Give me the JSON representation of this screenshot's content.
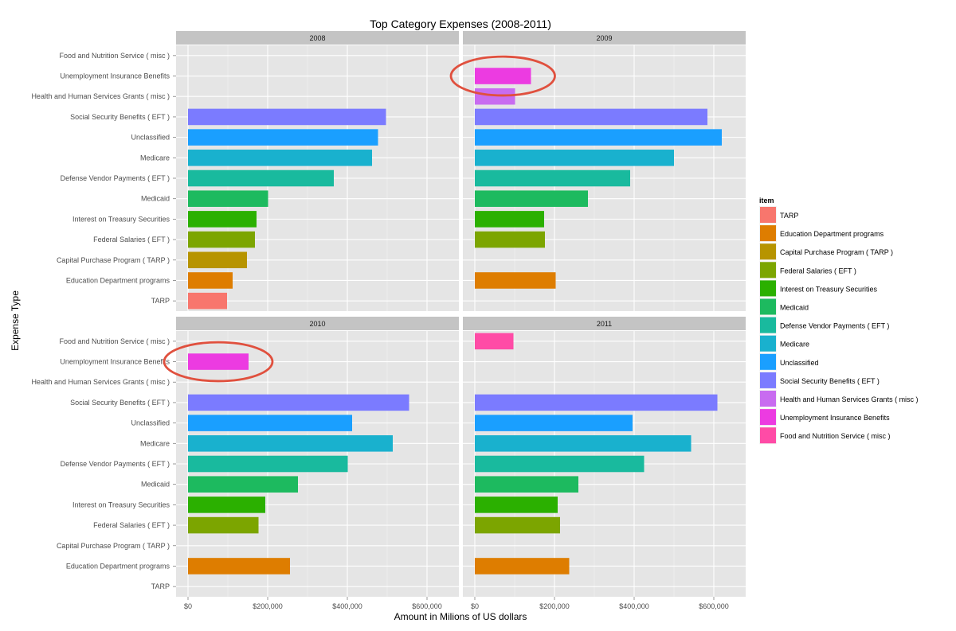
{
  "chart_data": {
    "type": "bar",
    "orientation": "horizontal",
    "title": "Top Category Expenses (2008-2011)",
    "xlabel": "Amount in Milions of US dollars",
    "ylabel": "Expense Type",
    "xlim": [
      0,
      650000
    ],
    "x_ticks": [
      {
        "value": 0,
        "label": "$0"
      },
      {
        "value": 200000,
        "label": "$200,000"
      },
      {
        "value": 400000,
        "label": "$400,000"
      },
      {
        "value": 600000,
        "label": "$600,000"
      }
    ],
    "categories": [
      "Food and Nutrition Service ( misc )",
      "Unemployment Insurance Benefits",
      "Health and Human Services Grants ( misc )",
      "Social Security Benefits ( EFT )",
      "Unclassified",
      "Medicare",
      "Defense Vendor Payments ( EFT )",
      "Medicaid",
      "Interest on Treasury Securities",
      "Federal Salaries ( EFT )",
      "Capital Purchase Program ( TARP )",
      "Education Department programs",
      "TARP"
    ],
    "grid": true,
    "legend_position": "right",
    "legend_title": "item",
    "legend_items": [
      {
        "label": "TARP",
        "color": "#F8766D"
      },
      {
        "label": "Education Department programs",
        "color": "#DE7D00"
      },
      {
        "label": "Capital Purchase Program ( TARP )",
        "color": "#B79400"
      },
      {
        "label": "Federal Salaries ( EFT )",
        "color": "#7CA500"
      },
      {
        "label": "Interest on Treasury Securities",
        "color": "#2BB000"
      },
      {
        "label": "Medicaid",
        "color": "#1DBA5F"
      },
      {
        "label": "Defense Vendor Payments ( EFT )",
        "color": "#19BA9E"
      },
      {
        "label": "Medicare",
        "color": "#19B1CE"
      },
      {
        "label": "Unclassified",
        "color": "#1A9FFF"
      },
      {
        "label": "Social Security Benefits ( EFT )",
        "color": "#7B7BFF"
      },
      {
        "label": "Health and Human Services Grants ( misc )",
        "color": "#C86CF0"
      },
      {
        "label": "Unemployment Insurance Benefits",
        "color": "#EC3BE1"
      },
      {
        "label": "Food and Nutrition Service ( misc )",
        "color": "#FF4BA6"
      }
    ],
    "panels": [
      {
        "label": "2008",
        "values": {
          "TARP": 98000,
          "Education Department programs": 112000,
          "Capital Purchase Program ( TARP )": 148000,
          "Federal Salaries ( EFT )": 168000,
          "Interest on Treasury Securities": 172000,
          "Medicaid": 201000,
          "Defense Vendor Payments ( EFT )": 366000,
          "Medicare": 462000,
          "Unclassified": 477000,
          "Social Security Benefits ( EFT )": 497000
        }
      },
      {
        "label": "2009",
        "values": {
          "Education Department programs": 203000,
          "Federal Salaries ( EFT )": 176000,
          "Interest on Treasury Securities": 174000,
          "Medicaid": 284000,
          "Defense Vendor Payments ( EFT )": 390000,
          "Medicare": 500000,
          "Unclassified": 620000,
          "Social Security Benefits ( EFT )": 584000,
          "Health and Human Services Grants ( misc )": 101000,
          "Unemployment Insurance Benefits": 141000
        }
      },
      {
        "label": "2010",
        "values": {
          "Education Department programs": 256000,
          "Federal Salaries ( EFT )": 177000,
          "Interest on Treasury Securities": 194000,
          "Medicaid": 276000,
          "Defense Vendor Payments ( EFT )": 401000,
          "Medicare": 514000,
          "Unclassified": 412000,
          "Social Security Benefits ( EFT )": 555000,
          "Unemployment Insurance Benefits": 152000
        }
      },
      {
        "label": "2011",
        "values": {
          "Education Department programs": 237000,
          "Federal Salaries ( EFT )": 214000,
          "Interest on Treasury Securities": 208000,
          "Medicaid": 260000,
          "Defense Vendor Payments ( EFT )": 425000,
          "Medicare": 543000,
          "Unclassified": 396000,
          "Social Security Benefits ( EFT )": 609000,
          "Food and Nutrition Service ( misc )": 97000
        }
      }
    ],
    "annotations": [
      {
        "type": "ellipse",
        "panel": "2009",
        "category": "Unemployment Insurance Benefits",
        "color": "#E0503E"
      },
      {
        "type": "ellipse",
        "panel": "2010",
        "category": "Unemployment Insurance Benefits",
        "color": "#E0503E"
      }
    ]
  }
}
